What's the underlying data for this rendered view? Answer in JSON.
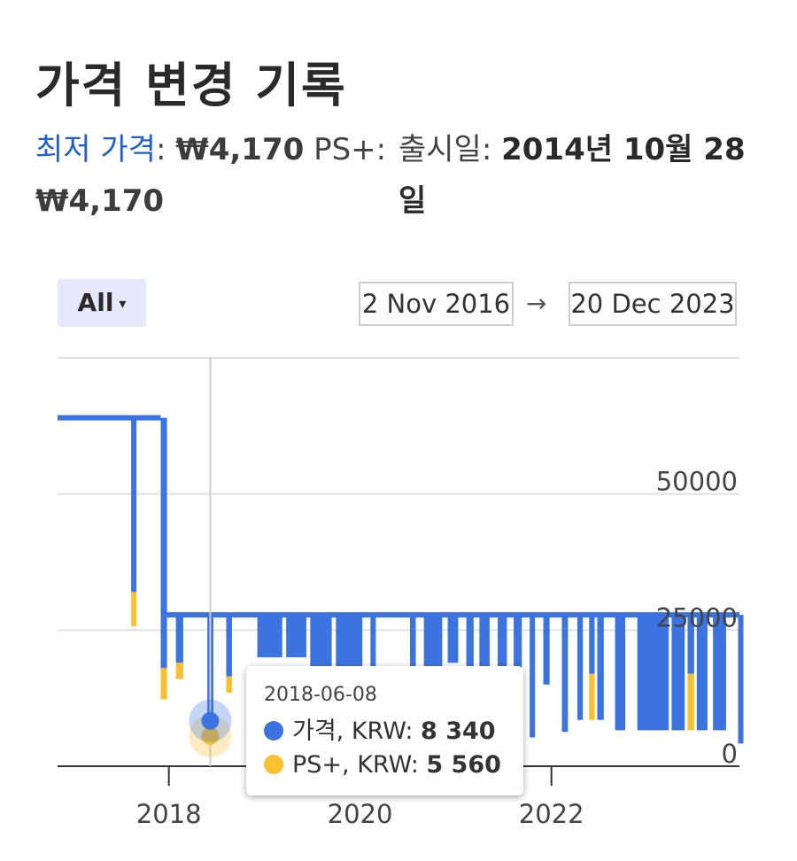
{
  "header": {
    "title": "가격 변경 기록",
    "lowest_label": "최저 가격",
    "colon": ":",
    "lowest_price": "₩4,170",
    "psplus_label": "PS+:",
    "psplus_price": "₩4,170",
    "release_label": "출시일:",
    "release_date": "2014년 10월 28일"
  },
  "filter": {
    "label": "All",
    "caret": "▾"
  },
  "date_range": {
    "from": "2 Nov 2016",
    "arrow": "→",
    "to": "20 Dec 2023"
  },
  "colors": {
    "price": "#3b73e0",
    "psplus": "#fbc02d",
    "grid": "#e0e0e0",
    "axis": "#333333"
  },
  "tooltip": {
    "date": "2018-06-08",
    "price_label": "가격, KRW: ",
    "price_value": "8 340",
    "psplus_label": "PS+, KRW: ",
    "psplus_value": "5 560"
  },
  "chart_data": {
    "type": "area",
    "x_range": [
      "2016-11-02",
      "2023-12-20"
    ],
    "ylim": [
      0,
      75000
    ],
    "y_ticks": [
      0,
      25000,
      50000
    ],
    "x_ticks": [
      "2018-01-01",
      "2020-01-01",
      "2022-01-01"
    ],
    "x_tick_labels": [
      "2018",
      "2020",
      "2022"
    ],
    "grid": true,
    "legend": "none",
    "baseline": 27800,
    "series": [
      {
        "name": "가격",
        "values": [
          {
            "date": "2016-11-02",
            "value": 64000
          },
          {
            "date": "2017-08-10",
            "value": 32000
          },
          {
            "date": "2017-08-20",
            "value": 64000
          },
          {
            "date": "2017-12-01",
            "value": 18000
          },
          {
            "date": "2017-12-25",
            "value": 27800
          },
          {
            "date": "2018-01-30",
            "value": 19000
          },
          {
            "date": "2018-06-08",
            "value": 8340
          }
        ]
      },
      {
        "name": "PS+",
        "values": [
          {
            "date": "2017-08-10",
            "value": 25700
          },
          {
            "date": "2017-12-01",
            "value": 12300
          },
          {
            "date": "2018-06-08",
            "value": 5560
          },
          {
            "date": "2023-12-20",
            "value": 4170
          }
        ]
      }
    ],
    "sale_dips": [
      [
        "2017-08-10",
        "2017-08-20",
        32000,
        25700
      ],
      [
        "2017-12-01",
        "2017-12-25",
        18000,
        12300
      ],
      [
        "2018-01-28",
        "2018-02-25",
        19000,
        16000
      ],
      [
        "2018-05-28",
        "2018-06-20",
        8340,
        5560
      ],
      [
        "2018-08-08",
        "2018-08-30",
        16500,
        13500
      ],
      [
        "2018-12-05",
        "2019-03-10",
        20000,
        20000
      ],
      [
        "2019-03-25",
        "2019-06-10",
        20000,
        20000
      ],
      [
        "2019-06-25",
        "2019-09-15",
        8700,
        8700
      ],
      [
        "2019-10-01",
        "2020-01-10",
        16400,
        16400
      ],
      [
        "2020-02-10",
        "2020-03-01",
        16400,
        16400
      ],
      [
        "2020-07-10",
        "2020-08-01",
        16400,
        16400
      ],
      [
        "2020-09-01",
        "2020-11-10",
        16400,
        16400
      ],
      [
        "2020-12-01",
        "2021-01-10",
        19000,
        19000
      ],
      [
        "2021-02-10",
        "2021-03-10",
        18000,
        18000
      ],
      [
        "2021-04-01",
        "2021-05-10",
        16000,
        16000
      ],
      [
        "2021-06-10",
        "2021-07-15",
        14000,
        14000
      ],
      [
        "2021-08-10",
        "2021-09-10",
        13500,
        13500
      ],
      [
        "2021-10-10",
        "2021-10-30",
        5300,
        5300
      ],
      [
        "2021-12-01",
        "2021-12-25",
        15000,
        15000
      ],
      [
        "2022-02-10",
        "2022-03-05",
        6300,
        6300
      ],
      [
        "2022-04-10",
        "2022-05-01",
        8500,
        8500
      ],
      [
        "2022-05-25",
        "2022-06-15",
        17000,
        8500
      ],
      [
        "2022-06-25",
        "2022-07-20",
        8500,
        8500
      ],
      [
        "2022-09-01",
        "2022-10-10",
        6600,
        6600
      ],
      [
        "2022-11-25",
        "2023-03-25",
        6600,
        6600
      ],
      [
        "2023-04-05",
        "2023-05-25",
        6600,
        6600
      ],
      [
        "2023-06-05",
        "2023-06-30",
        17000,
        6600
      ],
      [
        "2023-07-10",
        "2023-08-20",
        6600,
        6600
      ],
      [
        "2023-09-10",
        "2023-10-30",
        6600,
        6600
      ],
      [
        "2023-12-15",
        "2023-12-20",
        4170,
        4170
      ]
    ]
  }
}
